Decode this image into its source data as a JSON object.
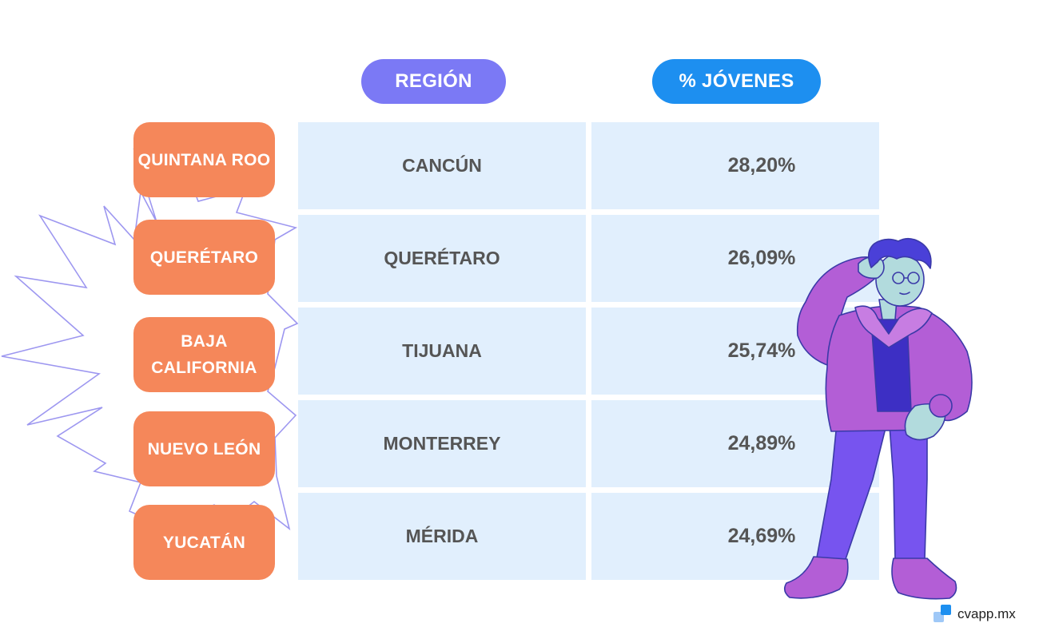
{
  "chart_data": {
    "type": "table",
    "columns": [
      "REGIÓN",
      "% JÓVENES"
    ],
    "rows": [
      {
        "state": "QUINTANA ROO",
        "city": "CANCÚN",
        "percent_label": "28,20%",
        "percent": 28.2
      },
      {
        "state": "QUERÉTARO",
        "city": "QUERÉTARO",
        "percent_label": "26,09%",
        "percent": 26.09
      },
      {
        "state": "BAJA\nCALIFORNIA",
        "city": "TIJUANA",
        "percent_label": "25,74%",
        "percent": 25.74
      },
      {
        "state": "NUEVO LEÓN",
        "city": "MONTERREY",
        "percent_label": "24,89%",
        "percent": 24.89
      },
      {
        "state": "YUCATÁN",
        "city": "MÉRIDA",
        "percent_label": "24,69%",
        "percent": 24.69
      }
    ]
  },
  "headers": {
    "region": "REGIÓN",
    "percent": "% JÓVENES"
  },
  "brand": {
    "name": "cvapp.mx",
    "icon": "cvapp-logo-icon"
  },
  "colors": {
    "region_header": "#7b79f5",
    "percent_header": "#1d8ff0",
    "state_pill": "#f5875a",
    "table_cell": "#e1effd",
    "text_dark": "#555555",
    "burst_stroke": "#9d97f0"
  }
}
